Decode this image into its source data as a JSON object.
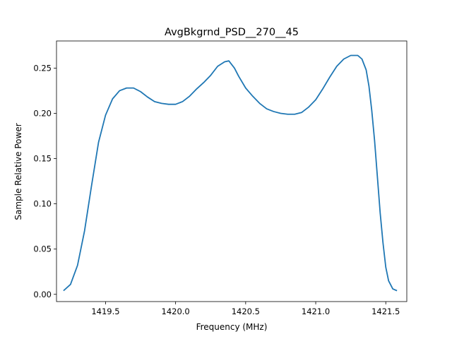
{
  "chart_data": {
    "type": "line",
    "title": "AvgBkgrnd_PSD__270__45",
    "xlabel": "Frequency (MHz)",
    "ylabel": "Sample Relative Power",
    "xlim": [
      1419.15,
      1421.65
    ],
    "ylim": [
      -0.008,
      0.28
    ],
    "xticks": [
      {
        "value": 1419.5,
        "label": "1419.5"
      },
      {
        "value": 1420.0,
        "label": "1420.0"
      },
      {
        "value": 1420.5,
        "label": "1420.5"
      },
      {
        "value": 1421.0,
        "label": "1421.0"
      },
      {
        "value": 1421.5,
        "label": "1421.5"
      }
    ],
    "yticks": [
      {
        "value": 0.0,
        "label": "0.00"
      },
      {
        "value": 0.05,
        "label": "0.05"
      },
      {
        "value": 0.1,
        "label": "0.10"
      },
      {
        "value": 0.15,
        "label": "0.15"
      },
      {
        "value": 0.2,
        "label": "0.20"
      },
      {
        "value": 0.25,
        "label": "0.25"
      }
    ],
    "grid": false,
    "legend": "none",
    "series": [
      {
        "color": "#1f77b4",
        "x": [
          1419.2,
          1419.25,
          1419.3,
          1419.35,
          1419.4,
          1419.45,
          1419.5,
          1419.55,
          1419.6,
          1419.65,
          1419.7,
          1419.75,
          1419.8,
          1419.85,
          1419.9,
          1419.95,
          1420.0,
          1420.05,
          1420.1,
          1420.15,
          1420.2,
          1420.25,
          1420.3,
          1420.35,
          1420.38,
          1420.42,
          1420.45,
          1420.5,
          1420.55,
          1420.6,
          1420.65,
          1420.7,
          1420.75,
          1420.8,
          1420.85,
          1420.9,
          1420.95,
          1421.0,
          1421.05,
          1421.1,
          1421.15,
          1421.2,
          1421.25,
          1421.3,
          1421.33,
          1421.36,
          1421.38,
          1421.4,
          1421.42,
          1421.44,
          1421.46,
          1421.48,
          1421.5,
          1421.52,
          1421.55,
          1421.58
        ],
        "y": [
          0.004,
          0.011,
          0.032,
          0.07,
          0.12,
          0.168,
          0.198,
          0.216,
          0.225,
          0.228,
          0.228,
          0.224,
          0.218,
          0.213,
          0.211,
          0.21,
          0.21,
          0.213,
          0.219,
          0.227,
          0.234,
          0.242,
          0.252,
          0.257,
          0.258,
          0.25,
          0.241,
          0.228,
          0.219,
          0.211,
          0.205,
          0.202,
          0.2,
          0.199,
          0.199,
          0.201,
          0.207,
          0.215,
          0.227,
          0.24,
          0.252,
          0.26,
          0.264,
          0.264,
          0.26,
          0.248,
          0.23,
          0.203,
          0.17,
          0.13,
          0.09,
          0.057,
          0.03,
          0.015,
          0.006,
          0.004
        ]
      }
    ]
  }
}
